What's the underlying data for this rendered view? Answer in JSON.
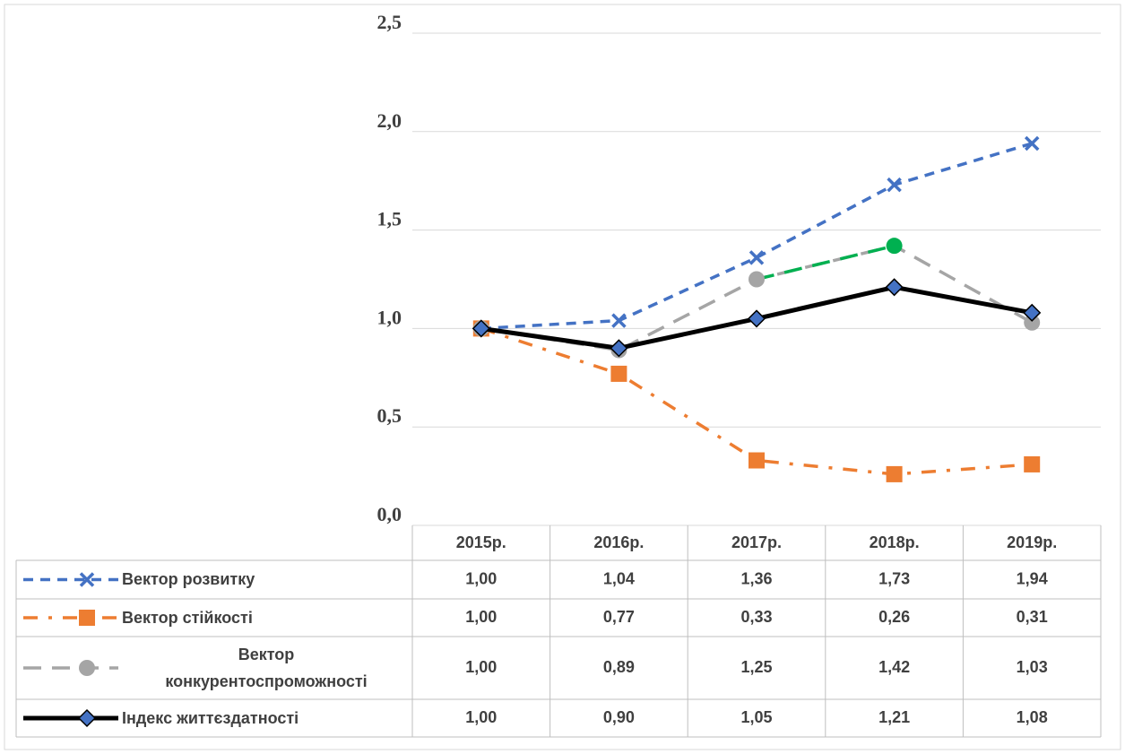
{
  "chart_data": {
    "type": "line",
    "categories": [
      "2015р.",
      "2016р.",
      "2017р.",
      "2018р.",
      "2019р."
    ],
    "series": [
      {
        "name": "Вектор розвитку",
        "color": "#4472c4",
        "marker": "x",
        "dash": "dashed",
        "values": [
          1.0,
          1.04,
          1.36,
          1.73,
          1.94
        ],
        "value_labels": [
          "1,00",
          "1,04",
          "1,36",
          "1,73",
          "1,94"
        ]
      },
      {
        "name": "Вектор стійкості",
        "color": "#ed7d31",
        "marker": "square",
        "dash": "dashdot",
        "values": [
          1.0,
          0.77,
          0.33,
          0.26,
          0.31
        ],
        "value_labels": [
          "1,00",
          "0,77",
          "0,33",
          "0,26",
          "0,31"
        ]
      },
      {
        "name": "Вектор конкурентоспроможності",
        "color": "#a5a5a5",
        "marker": "circle",
        "dash": "longdash",
        "point_colors": [
          "#a5a5a5",
          "#a5a5a5",
          "#a5a5a5",
          "#00b050",
          "#a5a5a5"
        ],
        "values": [
          1.0,
          0.89,
          1.25,
          1.42,
          1.03
        ],
        "value_labels": [
          "1,00",
          "0,89",
          "1,25",
          "1,42",
          "1,03"
        ]
      },
      {
        "name": "Індекс життєздатності",
        "color": "#000000",
        "marker": "diamond",
        "marker_color": "#4472c4",
        "dash": "solid",
        "values": [
          1.0,
          0.9,
          1.05,
          1.21,
          1.08
        ],
        "value_labels": [
          "1,00",
          "0,90",
          "1,05",
          "1,21",
          "1,08"
        ]
      }
    ],
    "ylim": [
      0,
      2.5
    ],
    "yticks": [
      {
        "value": 0,
        "label": "0,0"
      },
      {
        "value": 0.5,
        "label": "0,5"
      },
      {
        "value": 1,
        "label": "1,0"
      },
      {
        "value": 1.5,
        "label": "1,5"
      },
      {
        "value": 2,
        "label": "2,0"
      },
      {
        "value": 2.5,
        "label": "2,5"
      }
    ],
    "grid": true
  }
}
